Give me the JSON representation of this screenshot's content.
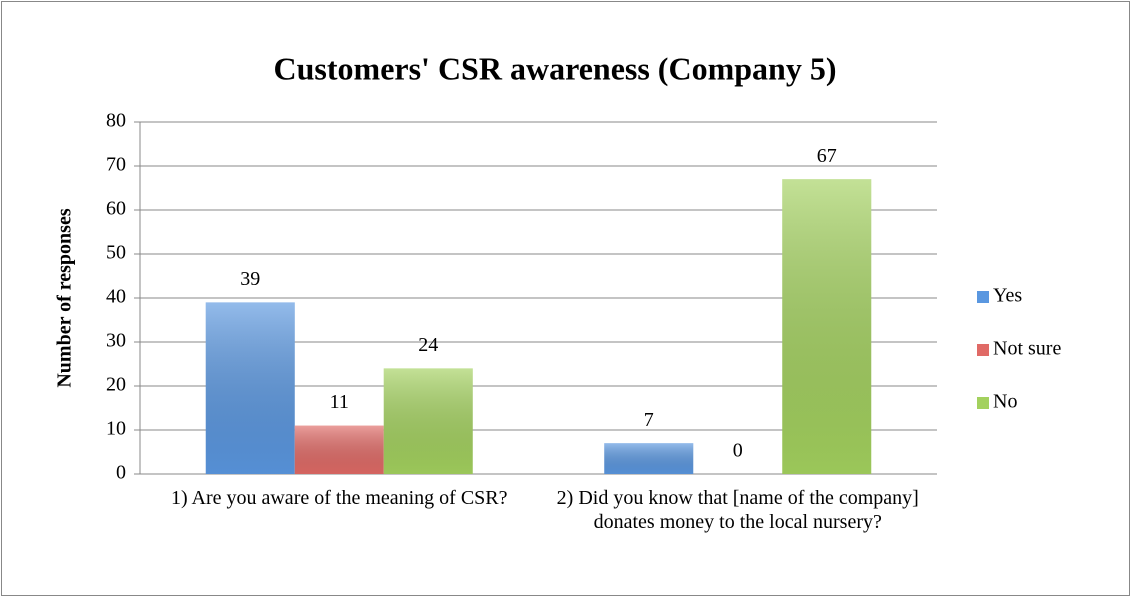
{
  "chart_data": {
    "type": "bar",
    "title": "Customers' CSR awareness (Company 5)",
    "y_label": "Number of responses",
    "categories": [
      "1) Are you aware of the meaning of CSR?",
      "2) Did you know that [name of the company] donates money to the local nursery?"
    ],
    "series": [
      {
        "name": "Yes",
        "color": "#5a97e0",
        "values": [
          39,
          7
        ]
      },
      {
        "name": "Not sure",
        "color": "#e06a66",
        "values": [
          11,
          0
        ]
      },
      {
        "name": "No",
        "color": "#a3d15e",
        "values": [
          24,
          67
        ]
      }
    ],
    "ylim": [
      0,
      80
    ],
    "yticks": [
      0,
      10,
      20,
      30,
      40,
      50,
      60,
      70,
      80
    ],
    "grid": true,
    "legend": "right"
  }
}
